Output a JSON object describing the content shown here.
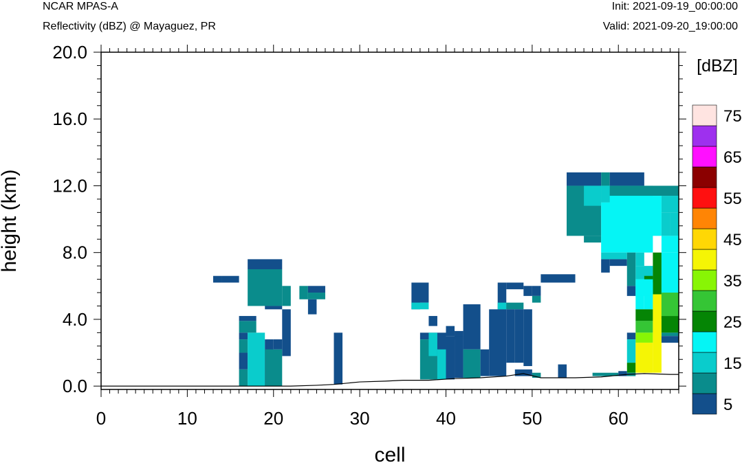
{
  "header": {
    "title_left": "NCAR MPAS-A",
    "subtitle_left": "Reflectivity (dBZ) @ Mayaguez, PR",
    "init_label": "Init: 2021-09-19_00:00:00",
    "valid_label": "Valid: 2021-09-20_19:00:00"
  },
  "colors": {
    "levels": [
      "#134f8b",
      "#0a8c8c",
      "#0acccc",
      "#05f5f5",
      "#058505",
      "#35c535",
      "#88f505",
      "#f5f505",
      "#ffd705",
      "#ff8505",
      "#ff1010",
      "#8b0000",
      "#ff10ff",
      "#9e30ee",
      "#ffe4e1"
    ]
  },
  "chart_data": {
    "type": "heatmap",
    "title": "Reflectivity (dBZ) @ Mayaguez, PR",
    "xlabel": "cell",
    "ylabel": "height (km)",
    "xlim": [
      0,
      67
    ],
    "ylim": [
      -0.2,
      20
    ],
    "xticks": [
      "0",
      "10",
      "20",
      "30",
      "40",
      "50",
      "60"
    ],
    "yticks": [
      "0.0",
      "4.0",
      "8.0",
      "12.0",
      "16.0",
      "20.0"
    ],
    "grid": false,
    "colorbar": {
      "title": "[dBZ]",
      "placement": "right",
      "levels": [
        5,
        10,
        15,
        20,
        25,
        30,
        35,
        40,
        45,
        50,
        55,
        60,
        65,
        70,
        75
      ],
      "tick_labels": [
        "5",
        "15",
        "25",
        "35",
        "45",
        "55",
        "65",
        "75"
      ]
    },
    "terrain": [
      [
        0,
        0
      ],
      [
        22,
        0
      ],
      [
        25,
        0.05
      ],
      [
        27,
        0.1
      ],
      [
        30,
        0.25
      ],
      [
        33,
        0.3
      ],
      [
        35,
        0.35
      ],
      [
        38,
        0.35
      ],
      [
        41,
        0.45
      ],
      [
        44,
        0.5
      ],
      [
        47,
        0.6
      ],
      [
        49,
        0.75
      ],
      [
        51,
        0.5
      ],
      [
        55,
        0.5
      ],
      [
        58,
        0.55
      ],
      [
        61,
        0.7
      ],
      [
        63,
        0.75
      ],
      [
        66,
        0.7
      ],
      [
        67,
        0.7
      ]
    ],
    "cells": [
      [
        13,
        14,
        6.2,
        6.6,
        5
      ],
      [
        14,
        16,
        6.2,
        6.6,
        5
      ],
      [
        17,
        21,
        7.0,
        7.6,
        5
      ],
      [
        17,
        21,
        4.8,
        7.0,
        10
      ],
      [
        21,
        22,
        4.8,
        6.0,
        10
      ],
      [
        19,
        21,
        4.6,
        4.8,
        5
      ],
      [
        21,
        22,
        1.8,
        4.6,
        5
      ],
      [
        16,
        18,
        3.9,
        4.2,
        5
      ],
      [
        16,
        18,
        3.2,
        3.9,
        10
      ],
      [
        16,
        17,
        2.8,
        3.2,
        5
      ],
      [
        16,
        17,
        2.0,
        2.8,
        10
      ],
      [
        16,
        17,
        1.0,
        2.0,
        5
      ],
      [
        16,
        17,
        0.0,
        1.0,
        10
      ],
      [
        17,
        19,
        0.0,
        3.2,
        15
      ],
      [
        19,
        20,
        0.0,
        2.8,
        5
      ],
      [
        19,
        21,
        0.0,
        2.2,
        10
      ],
      [
        20,
        21,
        2.2,
        2.8,
        5
      ],
      [
        23,
        24,
        5.2,
        6.0,
        10
      ],
      [
        24,
        26,
        5.6,
        6.0,
        5
      ],
      [
        24,
        26,
        5.2,
        5.6,
        10
      ],
      [
        24,
        25,
        4.3,
        5.2,
        5
      ],
      [
        27,
        28,
        0.1,
        3.2,
        5
      ],
      [
        36,
        38,
        5.0,
        6.2,
        5
      ],
      [
        36,
        37,
        4.6,
        5.0,
        5
      ],
      [
        36,
        38,
        4.6,
        5.0,
        15
      ],
      [
        38,
        39,
        3.6,
        4.2,
        5
      ],
      [
        37,
        39,
        2.8,
        3.2,
        5
      ],
      [
        37,
        39,
        0.4,
        2.8,
        10
      ],
      [
        38,
        39,
        1.8,
        3.2,
        15
      ],
      [
        39,
        40,
        0.4,
        3.2,
        5
      ],
      [
        39,
        40,
        0.4,
        2.2,
        15
      ],
      [
        40,
        41,
        3.0,
        3.6,
        5
      ],
      [
        40,
        41,
        0.4,
        3.0,
        5
      ],
      [
        41,
        42,
        2.8,
        3.3,
        5
      ],
      [
        41,
        42,
        0.5,
        3.0,
        5
      ],
      [
        42,
        44,
        2.2,
        4.9,
        5
      ],
      [
        42,
        44,
        0.5,
        2.2,
        10
      ],
      [
        44,
        45,
        0.6,
        2.2,
        5
      ],
      [
        45,
        47,
        0.6,
        4.6,
        5
      ],
      [
        46,
        47,
        4.6,
        6.2,
        5
      ],
      [
        46,
        47,
        4.6,
        5.0,
        15
      ],
      [
        47,
        49,
        5.8,
        6.2,
        5
      ],
      [
        47,
        49,
        4.6,
        5.0,
        10
      ],
      [
        47,
        48,
        1.4,
        4.6,
        5
      ],
      [
        48,
        49,
        1.4,
        4.6,
        5
      ],
      [
        49,
        50,
        1.2,
        4.6,
        5
      ],
      [
        48,
        50,
        0.6,
        1.0,
        5
      ],
      [
        50,
        51,
        0.5,
        0.8,
        10
      ],
      [
        49,
        50,
        5.4,
        6.0,
        5
      ],
      [
        50,
        51,
        5.4,
        6.0,
        5
      ],
      [
        50,
        51,
        5.0,
        5.4,
        10
      ],
      [
        51,
        55,
        6.2,
        6.7,
        5
      ],
      [
        53,
        54,
        0.5,
        1.3,
        5
      ],
      [
        54,
        58,
        12.0,
        12.8,
        5
      ],
      [
        54,
        58,
        9.0,
        12.0,
        10
      ],
      [
        56,
        58,
        10.8,
        12.0,
        15
      ],
      [
        56,
        58,
        8.6,
        9.0,
        10
      ],
      [
        58,
        59,
        12.0,
        12.8,
        10
      ],
      [
        59,
        63,
        12.0,
        12.8,
        5
      ],
      [
        58,
        59,
        11.0,
        12.0,
        15
      ],
      [
        58,
        64,
        11.0,
        12.0,
        15
      ],
      [
        59,
        67,
        11.4,
        12.0,
        10
      ],
      [
        58,
        64,
        8.0,
        11.0,
        20
      ],
      [
        59,
        65,
        9.0,
        11.4,
        20
      ],
      [
        65,
        67,
        10.4,
        11.4,
        15
      ],
      [
        65,
        66,
        9.0,
        10.4,
        15
      ],
      [
        66,
        67,
        9.0,
        10.4,
        15
      ],
      [
        65,
        67,
        8.0,
        9.0,
        20
      ],
      [
        58,
        61,
        7.6,
        8.0,
        15
      ],
      [
        58,
        59,
        6.8,
        7.6,
        5
      ],
      [
        59,
        61,
        7.2,
        7.6,
        5
      ],
      [
        61,
        62,
        6.0,
        8.0,
        10
      ],
      [
        61,
        62,
        5.4,
        6.0,
        5
      ],
      [
        62,
        63,
        7.2,
        8.0,
        15
      ],
      [
        62,
        64,
        6.4,
        7.2,
        15
      ],
      [
        63,
        64,
        6.2,
        6.6,
        25
      ],
      [
        64,
        65,
        4.0,
        8.0,
        25
      ],
      [
        65,
        67,
        5.4,
        8.0,
        20
      ],
      [
        62,
        63,
        4.6,
        6.2,
        20
      ],
      [
        63,
        64,
        4.6,
        6.2,
        20
      ],
      [
        62,
        64,
        5.4,
        6.4,
        20
      ],
      [
        61,
        62,
        2.8,
        3.2,
        5
      ],
      [
        61,
        62,
        1.4,
        2.8,
        15
      ],
      [
        61,
        62,
        0.8,
        1.4,
        25
      ],
      [
        61,
        62,
        0.6,
        0.8,
        10
      ],
      [
        62,
        64,
        3.9,
        4.6,
        25
      ],
      [
        62,
        64,
        3.2,
        3.9,
        30
      ],
      [
        62,
        64,
        2.6,
        3.2,
        35
      ],
      [
        62,
        64,
        0.8,
        2.6,
        40
      ],
      [
        64,
        65,
        0.8,
        5.5,
        40
      ],
      [
        65,
        67,
        4.2,
        5.6,
        30
      ],
      [
        65,
        67,
        3.2,
        4.2,
        25
      ],
      [
        65,
        67,
        3.0,
        3.2,
        10
      ],
      [
        65,
        67,
        2.6,
        3.0,
        5
      ],
      [
        57,
        60,
        0.6,
        0.8,
        10
      ],
      [
        60,
        61,
        0.6,
        0.9,
        5
      ]
    ]
  }
}
